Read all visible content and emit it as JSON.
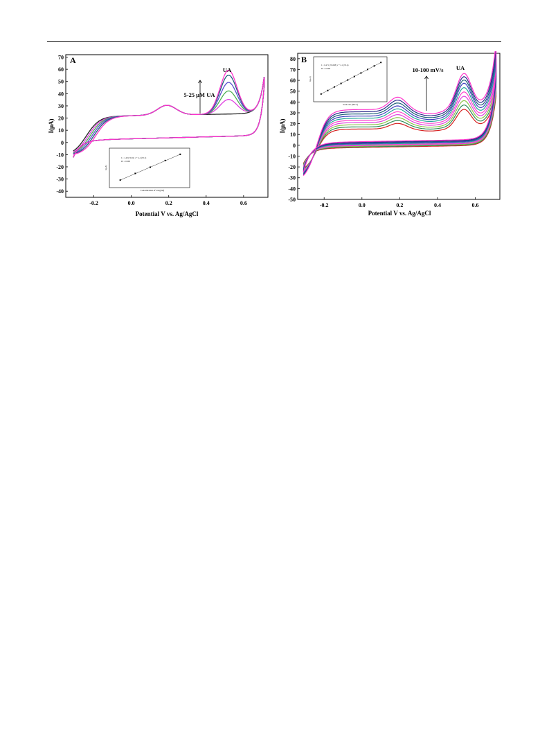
{
  "chart_data": [
    {
      "type": "line",
      "panel_label": "A",
      "xlabel": "Potential V vs. Ag/AgCl",
      "ylabel": "I(μA)",
      "xlim": [
        -0.35,
        0.73
      ],
      "ylim": [
        -45,
        72
      ],
      "xticks": [
        -0.2,
        0.0,
        0.2,
        0.4,
        0.6
      ],
      "xtick_labels": [
        "-0.2",
        "0.0",
        "0.2",
        "0.4",
        "0.6"
      ],
      "yticks": [
        -40,
        -30,
        -20,
        -10,
        0,
        10,
        20,
        30,
        40,
        50,
        60,
        70
      ],
      "ytick_labels": [
        "-40",
        "-30",
        "-20",
        "-10",
        "0",
        "10",
        "20",
        "30",
        "40",
        "50",
        "60",
        "70"
      ],
      "annotation": "5-25 μM UA",
      "peak_label": "UA",
      "colors": [
        "#222222",
        "#e040e0",
        "#4caf50",
        "#5a4fcf",
        "#1d5f7a",
        "#ff33cc"
      ],
      "series": [
        {
          "color": "#222222",
          "anodic_peak": 20,
          "oxidation_peak": 28
        },
        {
          "color": "#e040e0",
          "anodic_peak": 32,
          "oxidation_peak": 29
        },
        {
          "color": "#4caf50",
          "anodic_peak": 39,
          "oxidation_peak": 29
        },
        {
          "color": "#5a4fcf",
          "anodic_peak": 46,
          "oxidation_peak": 29
        },
        {
          "color": "#1d5f7a",
          "anodic_peak": 52,
          "oxidation_peak": 29
        },
        {
          "color": "#ff33cc",
          "anodic_peak": 56,
          "oxidation_peak": 30
        }
      ],
      "inset": {
        "type": "scatter",
        "equation": "I = 1.48 (±0.02) c + 4.4 (±0.3)",
        "r2": "R² = 0.999",
        "xlabel": "Concentration of UA (μM)",
        "ylabel": "I(μA)",
        "points": [
          [
            5,
            12
          ],
          [
            10,
            19.5
          ],
          [
            15,
            26.5
          ],
          [
            20,
            34
          ],
          [
            25,
            41
          ]
        ],
        "fit": true
      }
    },
    {
      "type": "line",
      "panel_label": "B",
      "xlabel": "Potential V vs. Ag/AgCl",
      "ylabel": "I(μA)",
      "xlim": [
        -0.34,
        0.73
      ],
      "ylim": [
        -50,
        85
      ],
      "xticks": [
        -0.2,
        0.0,
        0.2,
        0.4,
        0.6
      ],
      "xtick_labels": [
        "-0.2",
        "0.0",
        "0.2",
        "0.4",
        "0.6"
      ],
      "yticks": [
        -50,
        -40,
        -30,
        -20,
        -10,
        0,
        10,
        20,
        30,
        40,
        50,
        60,
        70,
        80
      ],
      "ytick_labels": [
        "-50",
        "-40",
        "-30",
        "-20",
        "-10",
        "0",
        "10",
        "20",
        "30",
        "40",
        "50",
        "60",
        "70",
        "80"
      ],
      "annotation": "10-100 mV/s",
      "peak_label": "UA",
      "series": [
        {
          "color": "#d62020",
          "base": 15,
          "peak": 33
        },
        {
          "color": "#2e8b57",
          "base": 17,
          "peak": 37
        },
        {
          "color": "#8bc34a",
          "base": 19,
          "peak": 41
        },
        {
          "color": "#e040e0",
          "base": 21,
          "peak": 45
        },
        {
          "color": "#ff44cc",
          "base": 23,
          "peak": 49
        },
        {
          "color": "#26a69a",
          "base": 25,
          "peak": 53
        },
        {
          "color": "#4040c0",
          "base": 27,
          "peak": 57
        },
        {
          "color": "#1d5f7a",
          "base": 29,
          "peak": 60
        },
        {
          "color": "#2a2a8a",
          "base": 31,
          "peak": 63
        },
        {
          "color": "#ff33cc",
          "base": 33,
          "peak": 66
        }
      ],
      "inset": {
        "type": "scatter",
        "equation": "I = 0.471 (±0.008) v + 2.1 (±0.4)",
        "r2": "R² = 0.998",
        "xlabel": "Scan rate (mV/s)",
        "ylabel": "I(μA)",
        "points": [
          [
            10,
            6.8
          ],
          [
            20,
            11.5
          ],
          [
            30,
            16.3
          ],
          [
            40,
            21
          ],
          [
            50,
            25.6
          ],
          [
            60,
            30.3
          ],
          [
            70,
            35
          ],
          [
            80,
            39.8
          ],
          [
            90,
            44.5
          ],
          [
            100,
            49.2
          ]
        ],
        "fit": true
      }
    }
  ]
}
